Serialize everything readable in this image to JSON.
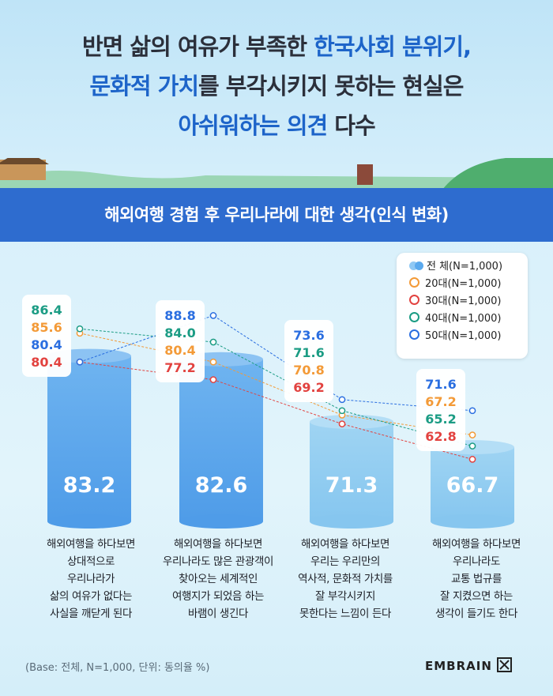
{
  "headline": {
    "line1_a": "반면 삶의 여유가 부족한 ",
    "line1_b": "한국사회 분위기,",
    "line2_a": "문화적 가치",
    "line2_b": "를 부각시키지 못하는 현실은",
    "line3_a": "아쉬워하는 의견",
    "line3_b": " 다수"
  },
  "banner": "해외여행 경험 후 우리나라에 대한 생각(인식 변화)",
  "colors": {
    "total": "#5aa9ee",
    "s20": "#f39a37",
    "s30": "#e2423f",
    "s40": "#1b9c84",
    "s50": "#2a6ee0",
    "banner": "#2e6ccf"
  },
  "chart_data": {
    "type": "bar",
    "categories": [
      "해외여행을 하다보면 상대적으로 우리나라가 삶의 여유가 없다는 사실을 깨닫게 된다",
      "해외여행을 하다보면 우리나라도 많은 관광객이 찾아오는 세계적인 여행지가 되었음 하는 바램이 생긴다",
      "해외여행을 하다보면 우리는 우리만의 역사적, 문화적 가치를 잘 부각시키지 못한다는 느낌이 든다",
      "해외여행을 하다보면 우리나라도 교통 법규를 잘 지켰으면 하는 생각이 들기도 한다"
    ],
    "category_lines": [
      [
        "해외여행을 하다보면",
        "상대적으로",
        "우리나라가",
        "삶의 여유가 없다는",
        "사실을 깨닫게 된다"
      ],
      [
        "해외여행을 하다보면",
        "우리나라도 많은 관광객이",
        "찾아오는 세계적인",
        "여행지가 되었음 하는",
        "바램이 생긴다"
      ],
      [
        "해외여행을 하다보면",
        "우리는 우리만의",
        "역사적, 문화적 가치를",
        "잘 부각시키지",
        "못한다는 느낌이 든다"
      ],
      [
        "해외여행을 하다보면",
        "우리나라도",
        "교통 법규를",
        "잘 지켰으면 하는",
        "생각이 들기도 한다"
      ]
    ],
    "series": [
      {
        "name": "전 체(N=1,000)",
        "values": [
          83.2,
          82.6,
          71.3,
          66.7
        ],
        "mark": "bar"
      },
      {
        "name": "20대(N=1,000)",
        "values": [
          85.6,
          80.4,
          70.8,
          67.2
        ],
        "mark": "line"
      },
      {
        "name": "30대(N=1,000)",
        "values": [
          80.4,
          77.2,
          69.2,
          62.8
        ],
        "mark": "line"
      },
      {
        "name": "40대(N=1,000)",
        "values": [
          86.4,
          84.0,
          71.6,
          65.2
        ],
        "mark": "line"
      },
      {
        "name": "50대(N=1,000)",
        "values": [
          80.4,
          88.8,
          73.6,
          71.6
        ],
        "mark": "line"
      }
    ],
    "label_order": [
      [
        "40대",
        "20대",
        "50대",
        "30대"
      ],
      [
        "50대",
        "40대",
        "20대",
        "30대"
      ],
      [
        "50대",
        "40대",
        "20대",
        "30대"
      ],
      [
        "50대",
        "20대",
        "40대",
        "30대"
      ]
    ],
    "unit": "%",
    "legend": "top-right"
  },
  "base_note": "(Base: 전체, N=1,000, 단위: 동의율 %)",
  "logo": "EMBRAIN"
}
